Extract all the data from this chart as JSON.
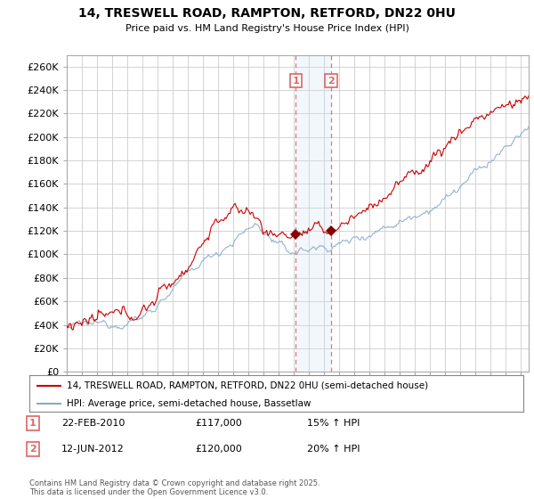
{
  "title_line1": "14, TRESWELL ROAD, RAMPTON, RETFORD, DN22 0HU",
  "title_line2": "Price paid vs. HM Land Registry's House Price Index (HPI)",
  "ylim": [
    0,
    270000
  ],
  "yticks": [
    0,
    20000,
    40000,
    60000,
    80000,
    100000,
    120000,
    140000,
    160000,
    180000,
    200000,
    220000,
    240000,
    260000
  ],
  "ytick_labels": [
    "£0",
    "£20K",
    "£40K",
    "£60K",
    "£80K",
    "£100K",
    "£120K",
    "£140K",
    "£160K",
    "£180K",
    "£200K",
    "£220K",
    "£240K",
    "£260K"
  ],
  "sale1_year": 2010.12,
  "sale1_price": 117000,
  "sale1_date_label": "22-FEB-2010",
  "sale1_price_label": "£117,000",
  "sale1_hpi_label": "15% ↑ HPI",
  "sale2_year": 2012.45,
  "sale2_price": 120000,
  "sale2_date_label": "12-JUN-2012",
  "sale2_price_label": "£120,000",
  "sale2_hpi_label": "20% ↑ HPI",
  "legend_line1": "14, TRESWELL ROAD, RAMPTON, RETFORD, DN22 0HU (semi-detached house)",
  "legend_line2": "HPI: Average price, semi-detached house, Bassetlaw",
  "copyright_text": "Contains HM Land Registry data © Crown copyright and database right 2025.\nThis data is licensed under the Open Government Licence v3.0.",
  "property_color": "#cc0000",
  "hpi_color": "#88aacc",
  "grid_color": "#cccccc",
  "bg_color": "#ffffff",
  "sale_vline_color": "#dd6666",
  "sale_fill_color": "#ddeeff",
  "marker_color": "#880000"
}
